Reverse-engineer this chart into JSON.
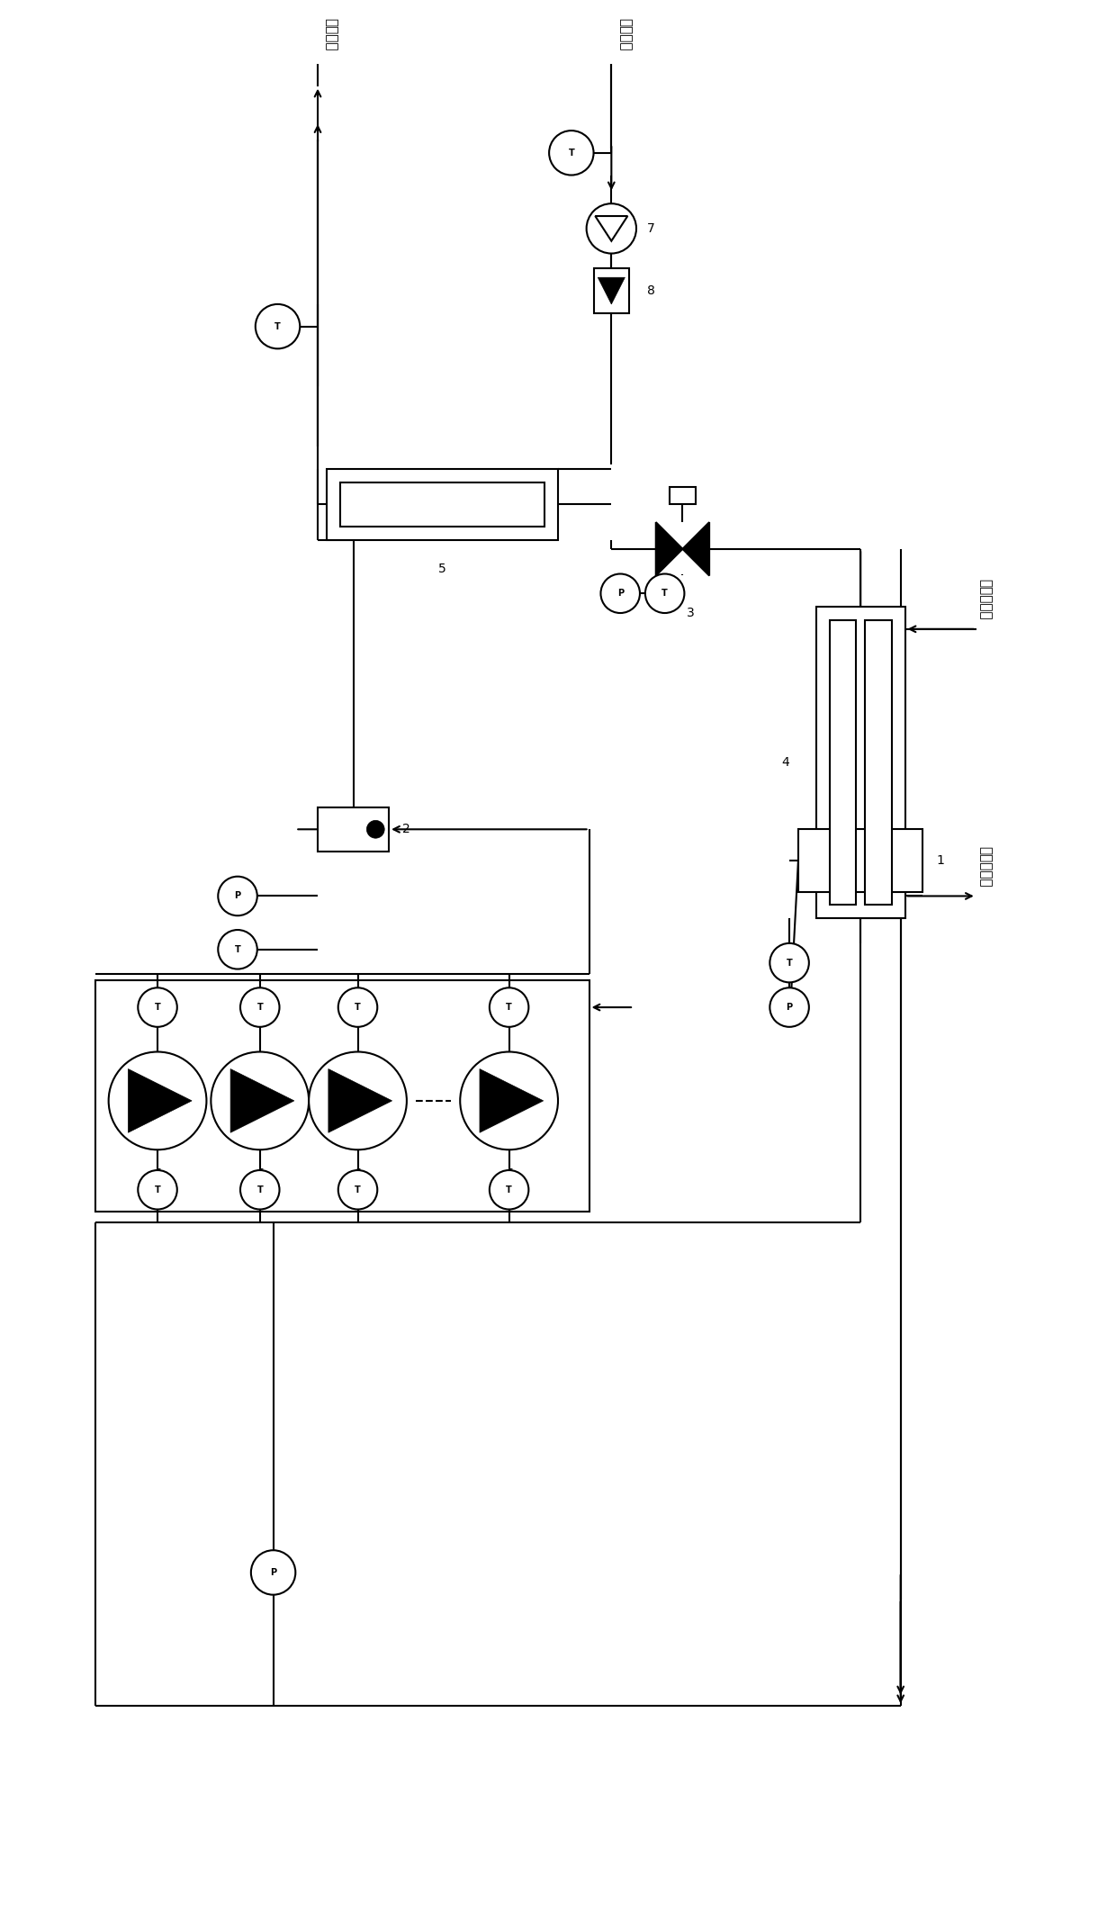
{
  "bg_color": "#ffffff",
  "line_color": "#000000",
  "labels": {
    "hot_water_out": "热水出口",
    "cold_water_in": "冷水进口",
    "heat_source_in": "热源侧进口",
    "heat_source_out": "热源侧出口"
  }
}
